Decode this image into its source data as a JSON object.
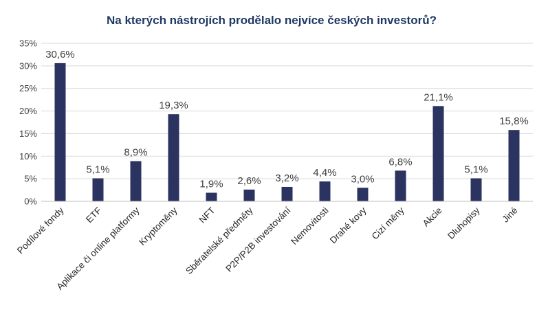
{
  "chart_data": {
    "type": "bar",
    "title": "Na kterých nástrojích prodělalo nejvíce českých investorů?",
    "xlabel": "",
    "ylabel": "",
    "categories": [
      "Podílové fondy",
      "ETF",
      "Aplikace či online platformy",
      "Kryptoměny",
      "NFT",
      "Sběratelské předměty",
      "P2P/P2B investování",
      "Nemovitosti",
      "Drahé kovy",
      "Cizí měny",
      "Akcie",
      "Dluhopisy",
      "Jiné"
    ],
    "values": [
      30.6,
      5.1,
      8.9,
      19.3,
      1.9,
      2.6,
      3.2,
      4.4,
      3.0,
      6.8,
      21.1,
      5.1,
      15.8
    ],
    "data_labels": [
      "30,6%",
      "5,1%",
      "8,9%",
      "19,3%",
      "1,9%",
      "2,6%",
      "3,2%",
      "4,4%",
      "3,0%",
      "6,8%",
      "21,1%",
      "5,1%",
      "15,8%"
    ],
    "ylim": [
      0,
      35
    ],
    "yticks": [
      0,
      5,
      10,
      15,
      20,
      25,
      30,
      35
    ],
    "ytick_labels": [
      "0%",
      "5%",
      "10%",
      "15%",
      "20%",
      "25%",
      "30%",
      "35%"
    ],
    "grid": true,
    "legend": "none",
    "bar_color": "#2b3361",
    "title_color": "#1f3864"
  }
}
